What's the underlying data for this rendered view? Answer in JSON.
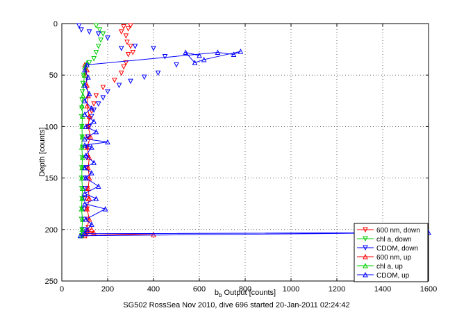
{
  "chart_data": {
    "type": "scatter",
    "xlabel_main": "b",
    "xlabel_sub": "b",
    "xlabel_rest": " Output [counts]",
    "ylabel": "Depth [counts]",
    "xlim": [
      0,
      1600
    ],
    "ylim": [
      0,
      250
    ],
    "y_reversed": true,
    "grid": true,
    "legend_position": "bottom-right",
    "x_ticks": [
      0,
      200,
      400,
      600,
      800,
      1000,
      1200,
      1400,
      1600
    ],
    "y_ticks": [
      0,
      50,
      100,
      150,
      200,
      250
    ],
    "caption": "SG502 RossSea Nov 2010, dive 696 started 20-Jan-2011 02:24:42",
    "series": [
      {
        "name": "600 nm, down",
        "color": "#ff0000",
        "marker": "tri-down",
        "line": false,
        "points": [
          [
            270,
            3
          ],
          [
            290,
            5
          ],
          [
            300,
            2
          ],
          [
            260,
            8
          ],
          [
            280,
            12
          ],
          [
            285,
            18
          ],
          [
            300,
            22
          ],
          [
            310,
            28
          ],
          [
            290,
            30
          ],
          [
            280,
            38
          ],
          [
            270,
            42
          ],
          [
            260,
            48
          ],
          [
            230,
            55
          ],
          [
            180,
            62
          ],
          [
            150,
            70
          ],
          [
            140,
            78
          ],
          [
            130,
            85
          ],
          [
            120,
            92
          ],
          [
            115,
            100
          ],
          [
            112,
            110
          ],
          [
            110,
            120
          ],
          [
            108,
            130
          ],
          [
            110,
            140
          ],
          [
            112,
            150
          ],
          [
            110,
            160
          ],
          [
            108,
            170
          ],
          [
            110,
            180
          ],
          [
            112,
            190
          ],
          [
            115,
            198
          ],
          [
            110,
            204
          ]
        ]
      },
      {
        "name": "chl a, down",
        "color": "#00cc00",
        "marker": "tri-down",
        "line": false,
        "points": [
          [
            150,
            2
          ],
          [
            165,
            6
          ],
          [
            180,
            10
          ],
          [
            170,
            16
          ],
          [
            160,
            22
          ],
          [
            150,
            28
          ],
          [
            140,
            34
          ],
          [
            120,
            38
          ],
          [
            105,
            44
          ],
          [
            95,
            50
          ],
          [
            92,
            58
          ],
          [
            90,
            66
          ],
          [
            88,
            74
          ],
          [
            87,
            82
          ],
          [
            86,
            90
          ],
          [
            87,
            100
          ],
          [
            88,
            110
          ],
          [
            90,
            120
          ],
          [
            88,
            130
          ],
          [
            87,
            140
          ],
          [
            86,
            150
          ],
          [
            87,
            160
          ],
          [
            88,
            170
          ],
          [
            87,
            180
          ],
          [
            86,
            190
          ],
          [
            88,
            200
          ],
          [
            87,
            206
          ]
        ]
      },
      {
        "name": "CDOM, down",
        "color": "#0000ff",
        "marker": "tri-down",
        "line": false,
        "points": [
          [
            75,
            2
          ],
          [
            85,
            6
          ],
          [
            120,
            8
          ],
          [
            160,
            10
          ],
          [
            200,
            14
          ],
          [
            260,
            24
          ],
          [
            320,
            22
          ],
          [
            400,
            24
          ],
          [
            450,
            32
          ],
          [
            500,
            40
          ],
          [
            420,
            48
          ],
          [
            360,
            52
          ],
          [
            300,
            56
          ],
          [
            250,
            60
          ],
          [
            200,
            66
          ],
          [
            180,
            72
          ],
          [
            160,
            78
          ],
          [
            140,
            84
          ],
          [
            130,
            90
          ],
          [
            120,
            100
          ],
          [
            115,
            110
          ],
          [
            110,
            120
          ],
          [
            108,
            130
          ],
          [
            106,
            140
          ],
          [
            104,
            150
          ],
          [
            102,
            160
          ],
          [
            100,
            170
          ],
          [
            98,
            180
          ],
          [
            96,
            190
          ],
          [
            95,
            200
          ],
          [
            95,
            205
          ]
        ]
      },
      {
        "name": "600 nm, up",
        "color": "#ff0000",
        "marker": "tri-up",
        "line": true,
        "points": [
          [
            130,
            200
          ],
          [
            110,
            201
          ],
          [
            140,
            203
          ],
          [
            105,
            204
          ],
          [
            400,
            205
          ],
          [
            100,
            206
          ],
          [
            120,
            190
          ],
          [
            110,
            180
          ],
          [
            120,
            170
          ],
          [
            115,
            160
          ],
          [
            120,
            150
          ],
          [
            115,
            140
          ],
          [
            120,
            130
          ],
          [
            110,
            120
          ],
          [
            125,
            110
          ],
          [
            115,
            100
          ],
          [
            120,
            90
          ],
          [
            110,
            80
          ],
          [
            115,
            70
          ],
          [
            110,
            60
          ],
          [
            105,
            50
          ],
          [
            110,
            45
          ],
          [
            100,
            40
          ]
        ]
      },
      {
        "name": "chl a, up",
        "color": "#00cc00",
        "marker": "tri-up",
        "line": true,
        "points": [
          [
            85,
            206
          ],
          [
            88,
            200
          ],
          [
            90,
            190
          ],
          [
            86,
            180
          ],
          [
            88,
            170
          ],
          [
            90,
            160
          ],
          [
            87,
            150
          ],
          [
            88,
            140
          ],
          [
            90,
            130
          ],
          [
            87,
            120
          ],
          [
            89,
            110
          ],
          [
            88,
            100
          ],
          [
            90,
            90
          ],
          [
            88,
            80
          ],
          [
            92,
            70
          ],
          [
            95,
            60
          ],
          [
            98,
            50
          ],
          [
            100,
            42
          ],
          [
            110,
            38
          ]
        ]
      },
      {
        "name": "CDOM, up",
        "color": "#0000ff",
        "marker": "tri-up",
        "line": true,
        "points": [
          [
            80,
            206
          ],
          [
            1600,
            203
          ],
          [
            100,
            204
          ],
          [
            110,
            200
          ],
          [
            130,
            195
          ],
          [
            105,
            190
          ],
          [
            190,
            180
          ],
          [
            100,
            175
          ],
          [
            150,
            170
          ],
          [
            100,
            165
          ],
          [
            160,
            158
          ],
          [
            105,
            150
          ],
          [
            130,
            145
          ],
          [
            100,
            140
          ],
          [
            140,
            135
          ],
          [
            105,
            128
          ],
          [
            130,
            120
          ],
          [
            100,
            118
          ],
          [
            200,
            115
          ],
          [
            100,
            112
          ],
          [
            150,
            105
          ],
          [
            105,
            100
          ],
          [
            140,
            95
          ],
          [
            100,
            88
          ],
          [
            130,
            82
          ],
          [
            100,
            75
          ],
          [
            120,
            68
          ],
          [
            100,
            60
          ],
          [
            115,
            52
          ],
          [
            100,
            45
          ],
          [
            110,
            40
          ],
          [
            680,
            28
          ],
          [
            750,
            30
          ],
          [
            780,
            27
          ],
          [
            620,
            35
          ],
          [
            580,
            38
          ],
          [
            540,
            28
          ],
          [
            600,
            31
          ]
        ]
      }
    ]
  }
}
